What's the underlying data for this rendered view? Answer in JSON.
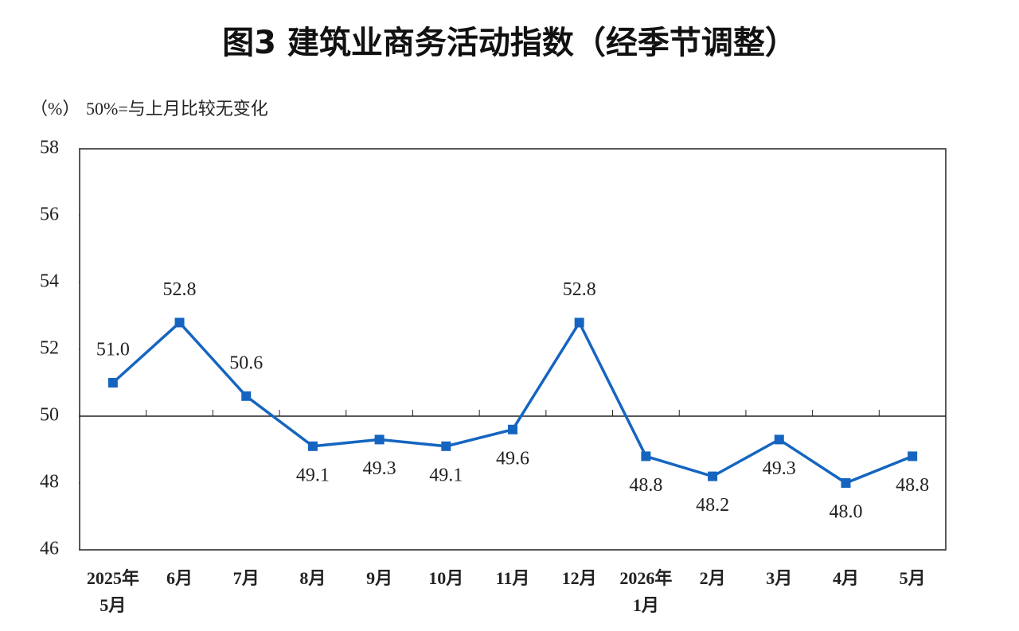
{
  "chart_data": {
    "type": "line",
    "title": "图3  建筑业商务活动指数（经季节调整）",
    "y_unit": "（%）",
    "annotation": "50%=与上月比较无变化",
    "categories": [
      [
        "2025年",
        "5月"
      ],
      [
        "6月"
      ],
      [
        "7月"
      ],
      [
        "8月"
      ],
      [
        "9月"
      ],
      [
        "10月"
      ],
      [
        "11月"
      ],
      [
        "12月"
      ],
      [
        "2026年",
        "1月"
      ],
      [
        "2月"
      ],
      [
        "3月"
      ],
      [
        "4月"
      ],
      [
        "5月"
      ]
    ],
    "series": [
      {
        "color": "#1565c0",
        "values": [
          51.0,
          52.8,
          50.6,
          49.1,
          49.3,
          49.1,
          49.6,
          52.8,
          48.8,
          48.2,
          49.3,
          48.0,
          48.8
        ],
        "value_labels": [
          "51.0",
          "52.8",
          "50.6",
          "49.1",
          "49.3",
          "49.1",
          "49.6",
          "52.8",
          "48.8",
          "48.2",
          "49.3",
          "48.0",
          "48.8"
        ]
      }
    ],
    "ylim": [
      46,
      58
    ],
    "yticks": [
      46,
      48,
      50,
      52,
      54,
      56,
      58
    ],
    "reference_line": 50
  }
}
